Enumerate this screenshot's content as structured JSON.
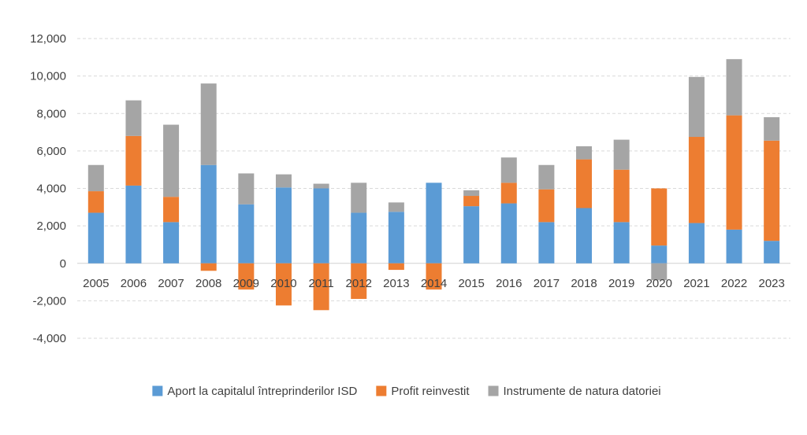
{
  "chart_data": {
    "type": "bar",
    "stacked": true,
    "categories": [
      "2005",
      "2006",
      "2007",
      "2008",
      "2009",
      "2010",
      "2011",
      "2012",
      "2013",
      "2014",
      "2015",
      "2016",
      "2017",
      "2018",
      "2019",
      "2020",
      "2021",
      "2022",
      "2023"
    ],
    "series": [
      {
        "name": "Aport la capitalul întreprinderilor ISD",
        "color": "#5B9BD5",
        "values": [
          2700,
          4150,
          2200,
          5250,
          3150,
          4050,
          4000,
          2700,
          2750,
          4300,
          3050,
          3200,
          2200,
          2950,
          2200,
          950,
          2150,
          1800,
          1200
        ]
      },
      {
        "name": "Profit reinvestit",
        "color": "#ED7D31",
        "values": [
          1150,
          2650,
          1350,
          -400,
          -1400,
          -2250,
          -2500,
          -1900,
          -350,
          -1400,
          550,
          1100,
          1750,
          2600,
          2800,
          3050,
          4600,
          6100,
          5350
        ]
      },
      {
        "name": "Instrumente de natura datoriei",
        "color": "#A5A5A5",
        "values": [
          1400,
          1900,
          3850,
          4350,
          1650,
          700,
          250,
          1600,
          500,
          0,
          300,
          1350,
          1300,
          700,
          1600,
          -900,
          3200,
          3000,
          1250
        ]
      }
    ],
    "y_ticks": [
      "12,000",
      "10,000",
      "8,000",
      "6,000",
      "4,000",
      "2,000",
      "0",
      "-2,000",
      "-4,000"
    ],
    "ylim": [
      -4000,
      12000
    ],
    "grid": true,
    "legend_position": "bottom",
    "title": "",
    "xlabel": "",
    "ylabel": ""
  }
}
